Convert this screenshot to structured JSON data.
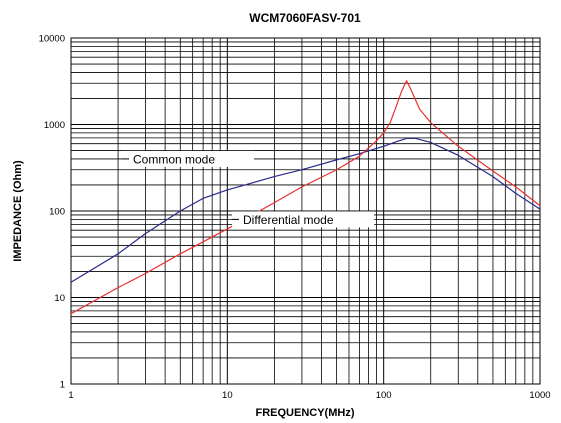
{
  "chart_data": {
    "type": "line",
    "title": "WCM7060FASV-701",
    "xlabel": "FREQUENCY(MHz)",
    "ylabel": "IMPEDANCE (Ohm)",
    "x_scale": "log",
    "y_scale": "log",
    "xlim": [
      1,
      1000
    ],
    "ylim": [
      1,
      10000
    ],
    "x_ticks": [
      1,
      10,
      100,
      1000
    ],
    "y_ticks": [
      1,
      10,
      100,
      1000,
      10000
    ],
    "x_tick_labels": [
      "1",
      "10",
      "100",
      "1000"
    ],
    "y_tick_labels": [
      "1",
      "10",
      "100",
      "1000",
      "10000"
    ],
    "grid": true,
    "legend": "none",
    "annotations": [
      {
        "text": "Common mode",
        "series": "common"
      },
      {
        "text": "Differential mode",
        "series": "differential"
      }
    ],
    "series": [
      {
        "key": "common",
        "color": "#2a2a8c",
        "points": [
          [
            1,
            15
          ],
          [
            2,
            32
          ],
          [
            3,
            55
          ],
          [
            5,
            100
          ],
          [
            7,
            140
          ],
          [
            10,
            175
          ],
          [
            20,
            250
          ],
          [
            30,
            300
          ],
          [
            50,
            390
          ],
          [
            70,
            460
          ],
          [
            100,
            560
          ],
          [
            120,
            630
          ],
          [
            140,
            690
          ],
          [
            160,
            690
          ],
          [
            200,
            620
          ],
          [
            300,
            440
          ],
          [
            500,
            250
          ],
          [
            700,
            160
          ],
          [
            1000,
            105
          ]
        ]
      },
      {
        "key": "differential",
        "color": "#e83030",
        "points": [
          [
            1,
            6.5
          ],
          [
            2,
            13
          ],
          [
            3,
            19
          ],
          [
            5,
            32
          ],
          [
            7,
            44
          ],
          [
            10,
            62
          ],
          [
            20,
            125
          ],
          [
            30,
            190
          ],
          [
            50,
            300
          ],
          [
            70,
            430
          ],
          [
            90,
            650
          ],
          [
            100,
            800
          ],
          [
            110,
            1050
          ],
          [
            120,
            1600
          ],
          [
            130,
            2400
          ],
          [
            140,
            3200
          ],
          [
            150,
            2500
          ],
          [
            170,
            1500
          ],
          [
            200,
            1050
          ],
          [
            300,
            560
          ],
          [
            500,
            290
          ],
          [
            700,
            190
          ],
          [
            1000,
            115
          ]
        ]
      }
    ]
  }
}
